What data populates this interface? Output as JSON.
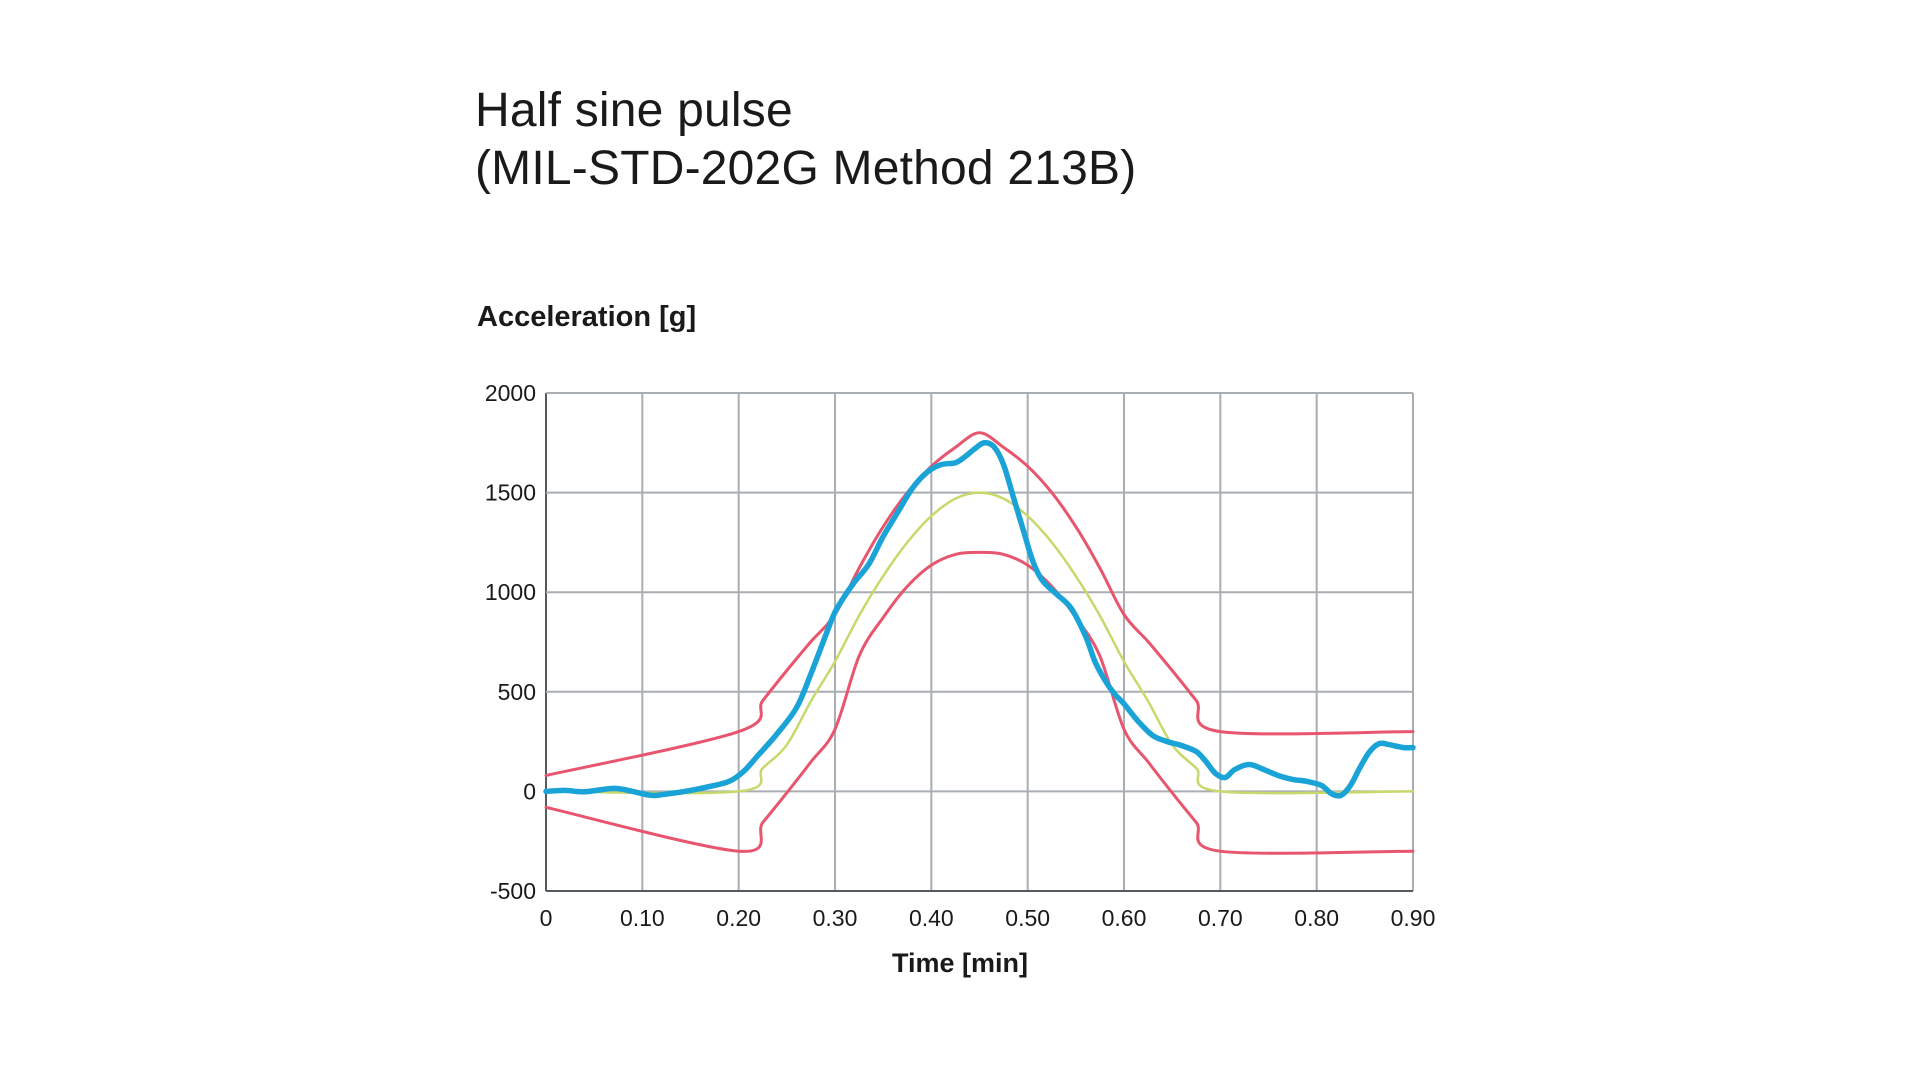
{
  "title": {
    "line1": "Half sine pulse",
    "line2": "(MIL-STD-202G Method 213B)"
  },
  "chart_data": {
    "type": "line",
    "ylabel": "Acceleration [g]",
    "xlabel": "Time [min]",
    "xlim": [
      0,
      0.9
    ],
    "ylim": [
      -500,
      2000
    ],
    "x_ticks": [
      0,
      0.1,
      0.2,
      0.3,
      0.4,
      0.5,
      0.6,
      0.7,
      0.8,
      0.9
    ],
    "x_tick_labels": [
      "0",
      "0.10",
      "0.20",
      "0.30",
      "0.40",
      "0.50",
      "0.60",
      "0.70",
      "0.80",
      "0.90"
    ],
    "y_ticks": [
      -500,
      0,
      500,
      1000,
      1500,
      2000
    ],
    "y_tick_labels": [
      "-500",
      "0",
      "500",
      "1000",
      "1500",
      "2000"
    ],
    "grid": true,
    "legend": "none",
    "series": [
      {
        "color": "#e8556e",
        "stroke_width": 3,
        "x": [
          0,
          0.2,
          0.225,
          0.25,
          0.275,
          0.3,
          0.325,
          0.35,
          0.375,
          0.4,
          0.425,
          0.45,
          0.475,
          0.5,
          0.525,
          0.55,
          0.575,
          0.6,
          0.625,
          0.65,
          0.675,
          0.7,
          0.9
        ],
        "y": [
          80,
          300,
          456,
          607,
          752,
          888,
          1121,
          1329,
          1500,
          1632,
          1727,
          1800,
          1727,
          1632,
          1500,
          1329,
          1121,
          888,
          752,
          607,
          456,
          300,
          300
        ]
      },
      {
        "color": "#e8556e",
        "stroke_width": 3,
        "x": [
          0,
          0.2,
          0.225,
          0.25,
          0.275,
          0.3,
          0.325,
          0.35,
          0.375,
          0.4,
          0.425,
          0.45,
          0.475,
          0.5,
          0.525,
          0.55,
          0.575,
          0.6,
          0.625,
          0.65,
          0.675,
          0.7,
          0.9
        ],
        "y": [
          -80,
          -300,
          -156,
          -7,
          148,
          312,
          679,
          873,
          1029,
          1136,
          1190,
          1200,
          1190,
          1136,
          1029,
          873,
          679,
          312,
          148,
          -7,
          -156,
          -300,
          -300
        ]
      },
      {
        "color": "#c6d96a",
        "stroke_width": 2.5,
        "x": [
          0,
          0.2,
          0.225,
          0.25,
          0.275,
          0.3,
          0.325,
          0.35,
          0.375,
          0.4,
          0.425,
          0.45,
          0.475,
          0.5,
          0.525,
          0.55,
          0.575,
          0.6,
          0.625,
          0.65,
          0.675,
          0.7,
          0.9
        ],
        "y": [
          0,
          0,
          117,
          234,
          453,
          652,
          882,
          1081,
          1250,
          1382,
          1470,
          1500,
          1470,
          1382,
          1250,
          1081,
          882,
          652,
          453,
          234,
          117,
          0,
          0
        ]
      },
      {
        "color": "#1aa3d6",
        "stroke_width": 5.5,
        "x": [
          0,
          0.02,
          0.04,
          0.07,
          0.09,
          0.11,
          0.13,
          0.15,
          0.17,
          0.19,
          0.205,
          0.22,
          0.24,
          0.26,
          0.275,
          0.29,
          0.3,
          0.31,
          0.32,
          0.335,
          0.35,
          0.365,
          0.38,
          0.395,
          0.41,
          0.425,
          0.435,
          0.445,
          0.455,
          0.465,
          0.475,
          0.485,
          0.495,
          0.505,
          0.515,
          0.53,
          0.545,
          0.56,
          0.57,
          0.58,
          0.59,
          0.6,
          0.615,
          0.63,
          0.645,
          0.66,
          0.675,
          0.685,
          0.695,
          0.705,
          0.715,
          0.73,
          0.745,
          0.76,
          0.775,
          0.79,
          0.805,
          0.815,
          0.825,
          0.835,
          0.845,
          0.855,
          0.865,
          0.875,
          0.89,
          0.9
        ],
        "y": [
          0,
          5,
          -2,
          15,
          0,
          -20,
          -10,
          5,
          25,
          50,
          100,
          180,
          290,
          420,
          590,
          780,
          900,
          980,
          1050,
          1140,
          1280,
          1400,
          1520,
          1600,
          1640,
          1650,
          1680,
          1720,
          1750,
          1730,
          1640,
          1480,
          1320,
          1160,
          1060,
          990,
          920,
          780,
          650,
          560,
          490,
          440,
          350,
          280,
          250,
          230,
          200,
          150,
          90,
          70,
          110,
          135,
          110,
          80,
          60,
          50,
          30,
          -10,
          -20,
          30,
          120,
          200,
          240,
          235,
          220,
          220
        ]
      }
    ]
  }
}
